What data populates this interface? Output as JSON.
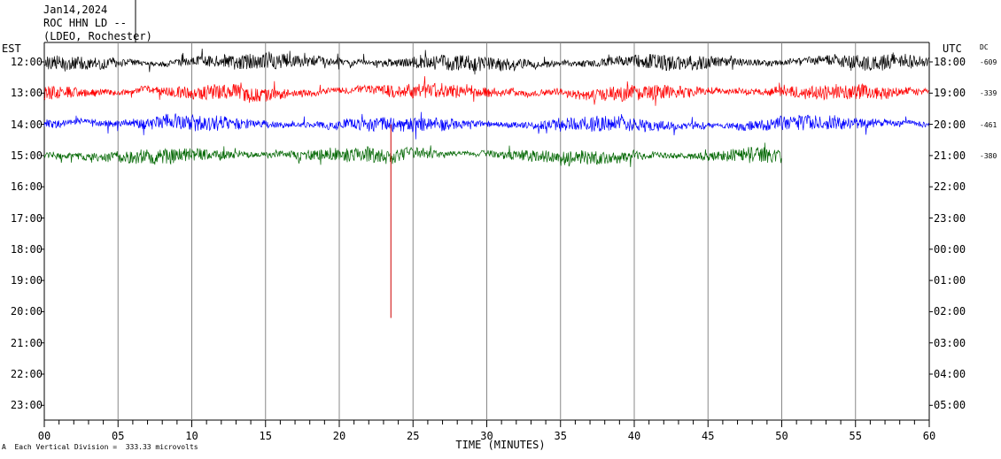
{
  "header": {
    "date": "Jan14,2024",
    "station": "ROC HHN LD --",
    "network": "(LDEO, Rochester)"
  },
  "left_axis_label": "EST",
  "right_axis_label": "UTC",
  "dc_label": "DC",
  "footer": {
    "scale_note": "Each Vertical Division =  333.33 microvolts",
    "corner_mark": "A"
  },
  "chart_data": {
    "type": "line",
    "title": "",
    "xlabel": "TIME (MINUTES)",
    "ylabel": "",
    "xlim": [
      0,
      60
    ],
    "x_ticks": [
      "00",
      "05",
      "10",
      "15",
      "20",
      "25",
      "30",
      "35",
      "40",
      "45",
      "50",
      "55",
      "60"
    ],
    "y_ticks_left": [
      "12:00",
      "13:00",
      "14:00",
      "15:00",
      "16:00",
      "17:00",
      "18:00",
      "19:00",
      "20:00",
      "21:00",
      "22:00",
      "23:00"
    ],
    "y_ticks_right": [
      "18:00",
      "19:00",
      "20:00",
      "21:00",
      "22:00",
      "23:00",
      "00:00",
      "01:00",
      "02:00",
      "03:00",
      "04:00",
      "05:00"
    ],
    "grid": "vertical every 5 minutes",
    "series": [
      {
        "hour_est": "12:00",
        "color": "#000000",
        "minutes_recorded": 60,
        "dc_offset": "-609"
      },
      {
        "hour_est": "13:00",
        "color": "#ff0000",
        "minutes_recorded": 60,
        "dc_offset": "-339"
      },
      {
        "hour_est": "14:00",
        "color": "#0000ff",
        "minutes_recorded": 60,
        "dc_offset": "-461"
      },
      {
        "hour_est": "15:00",
        "color": "#006600",
        "minutes_recorded": 50,
        "dc_offset": "-380"
      }
    ],
    "event_marker": {
      "minute": 23.5,
      "color": "#cc0000"
    }
  }
}
